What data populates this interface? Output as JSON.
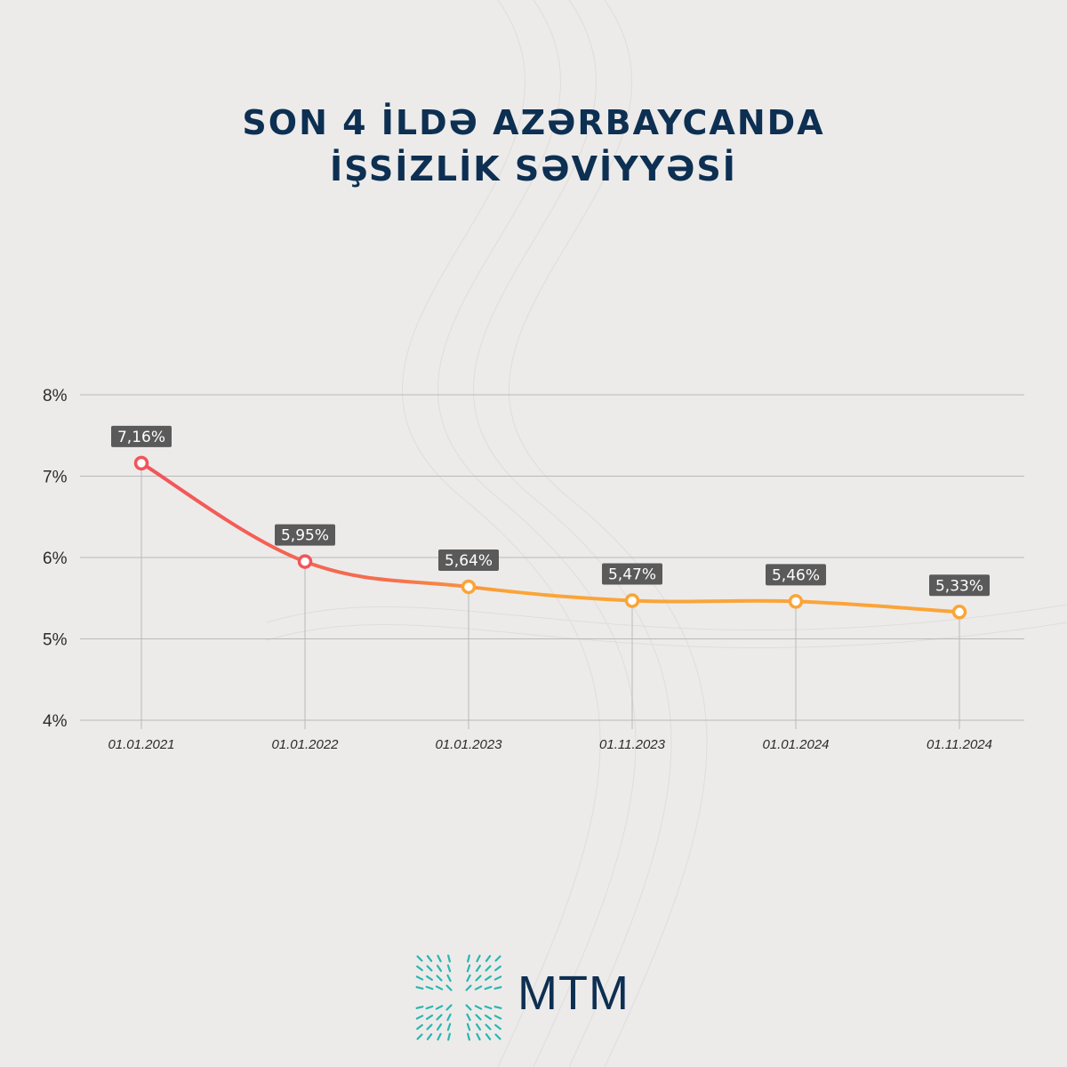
{
  "title": {
    "line1": "SON 4 İLDƏ AZƏRBAYCANDA",
    "line2": "İŞSİZLİK SƏVİYYƏSİ"
  },
  "chart_data": {
    "type": "line",
    "title": "SON 4 İLDƏ AZƏRBAYCANDA İŞSİZLİK SƏVİYYƏSİ",
    "xlabel": "",
    "ylabel": "",
    "categories": [
      "01.01.2021",
      "01.01.2022",
      "01.01.2023",
      "01.11.2023",
      "01.01.2024",
      "01.11.2024"
    ],
    "values": [
      7.16,
      5.95,
      5.64,
      5.47,
      5.46,
      5.33
    ],
    "data_labels": [
      "7,16%",
      "5,95%",
      "5,64%",
      "5,47%",
      "5,46%",
      "5,33%"
    ],
    "ylim": [
      4,
      8
    ],
    "yticks": [
      4,
      5,
      6,
      7,
      8
    ],
    "ytick_labels": [
      "4%",
      "5%",
      "6%",
      "7%",
      "8%"
    ],
    "grid": "horizontal",
    "legend": "none",
    "colors": {
      "line_start": "#f2545b",
      "line_end": "#fba437",
      "label_bg": "#5a5a5a",
      "title": "#0d2f52"
    }
  },
  "logo": {
    "text": "MTM",
    "icon": "mtm-logo-icon",
    "color": "#0d2f52",
    "accent": "#2bb5b0"
  }
}
